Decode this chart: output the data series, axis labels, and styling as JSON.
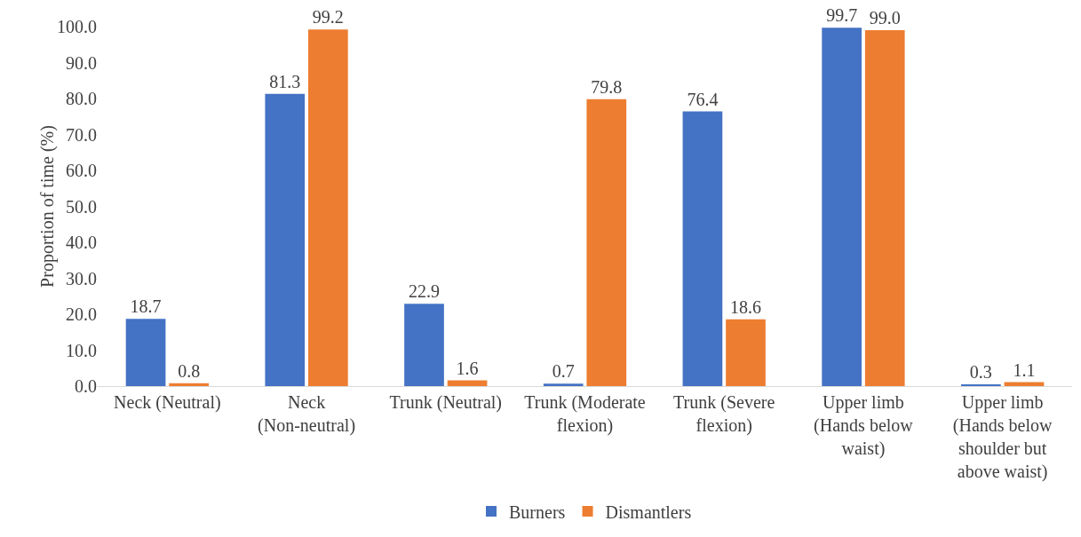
{
  "chart_data": {
    "type": "bar",
    "ylabel": "Proportion of time (%)",
    "categories": [
      "Neck (Neutral)",
      "Neck (Non-neutral)",
      "Trunk (Neutral)",
      "Trunk (Moderate flexion)",
      "Trunk (Severe flexion)",
      "Upper limb (Hands below waist)",
      "Upper limb (Hands below shoulder but above waist)"
    ],
    "series": [
      {
        "name": "Burners",
        "color": "#4472c4",
        "values": [
          18.7,
          81.3,
          22.9,
          0.7,
          76.4,
          99.7,
          0.3
        ],
        "value_labels": [
          "18.7",
          "81.3",
          "22.9",
          "0.7",
          "76.4",
          "99.7",
          "0.3"
        ]
      },
      {
        "name": "Dismantlers",
        "color": "#ed7d31",
        "values": [
          0.8,
          99.2,
          1.6,
          79.8,
          18.6,
          99.0,
          1.1
        ],
        "value_labels": [
          "0.8",
          "99.2",
          "1.6",
          "79.8",
          "18.6",
          "99.0",
          "1.1"
        ]
      }
    ],
    "ylim": [
      0,
      100
    ],
    "yticks": [
      {
        "value": 0,
        "label": "0.0"
      },
      {
        "value": 10,
        "label": "10.0"
      },
      {
        "value": 20,
        "label": "20.0"
      },
      {
        "value": 30,
        "label": "30.0"
      },
      {
        "value": 40,
        "label": "40.0"
      },
      {
        "value": 50,
        "label": "50.0"
      },
      {
        "value": 60,
        "label": "60.0"
      },
      {
        "value": 70,
        "label": "70.0"
      },
      {
        "value": 80,
        "label": "80.0"
      },
      {
        "value": 90,
        "label": "90.0"
      },
      {
        "value": 100,
        "label": "100.0"
      }
    ],
    "grid": false,
    "legend": "bottom"
  }
}
